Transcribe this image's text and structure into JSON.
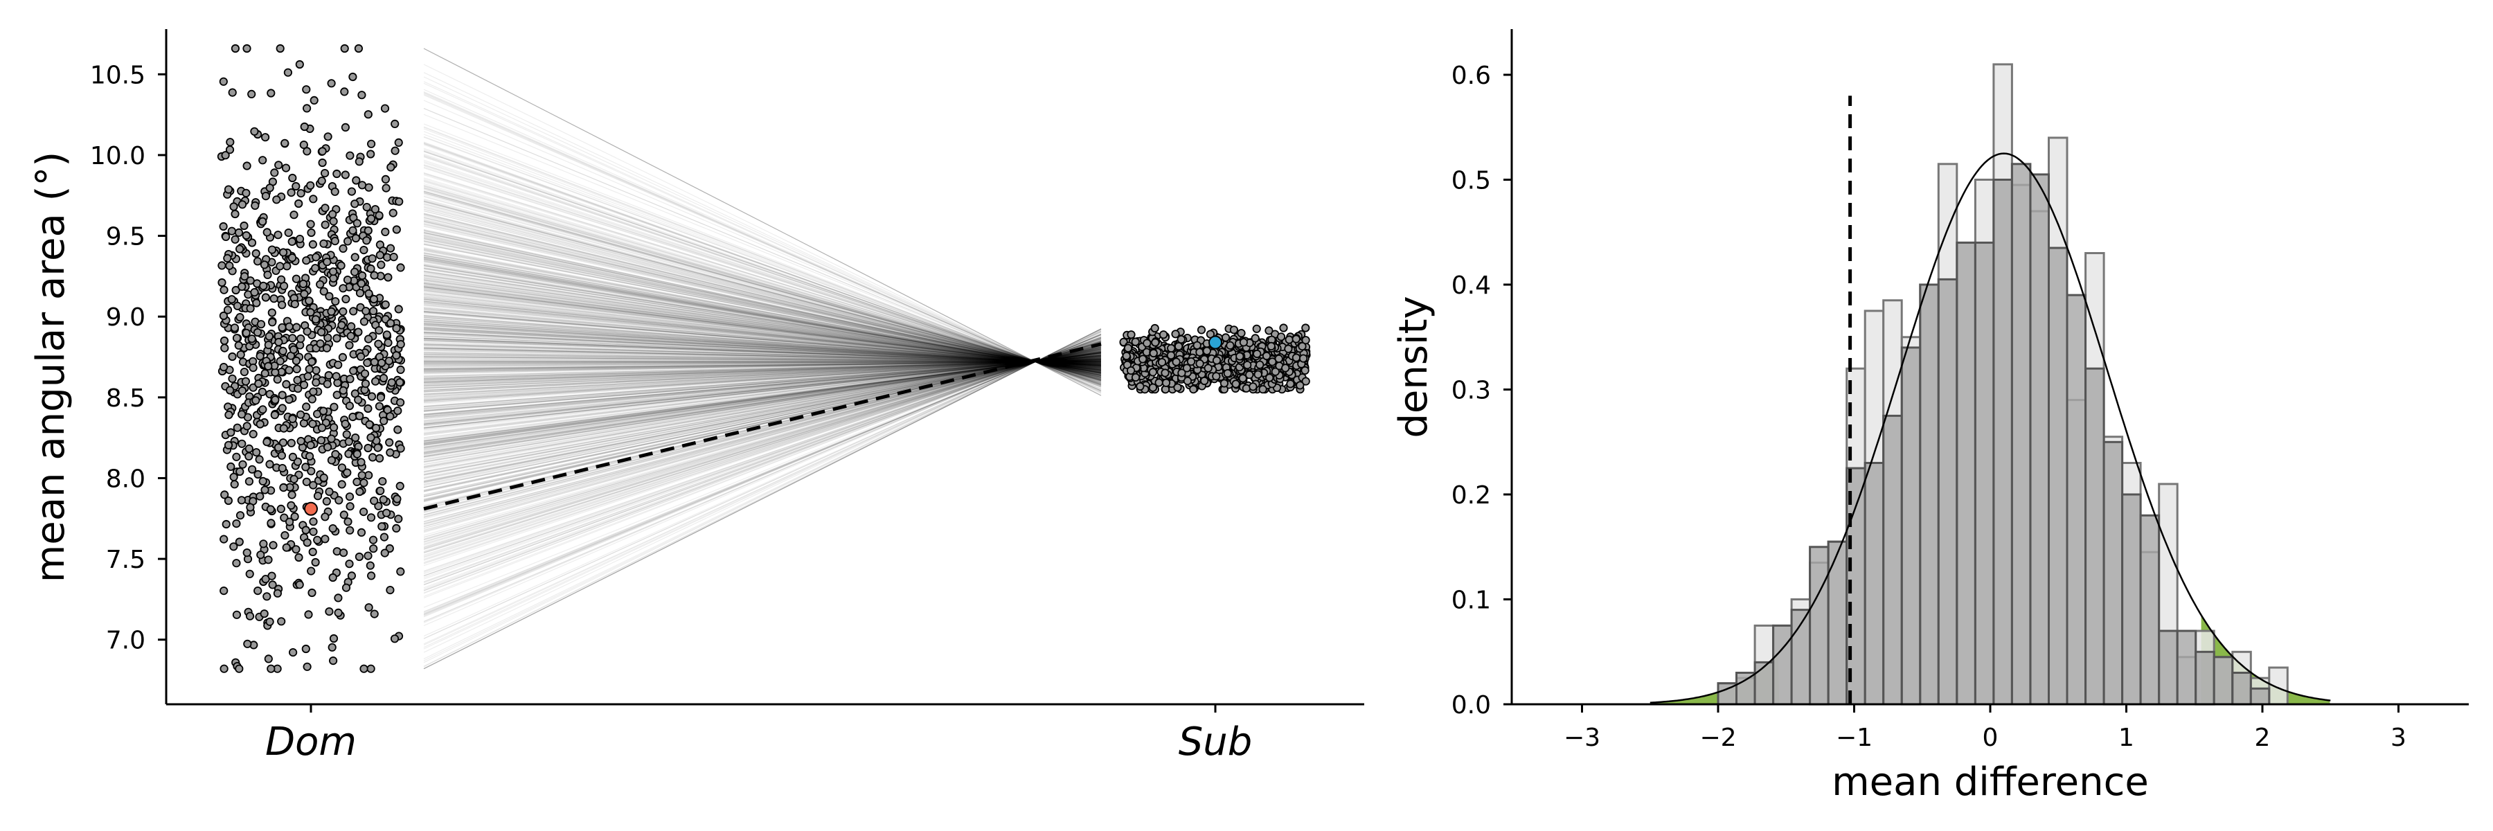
{
  "chart_data": [
    {
      "type": "scatter",
      "ylabel": "mean angular area (°)",
      "xlabel": "",
      "categories": [
        "Dom",
        "Sub"
      ],
      "ylim": [
        6.6,
        10.78
      ],
      "yticks": [
        7.0,
        7.5,
        8.0,
        8.5,
        9.0,
        9.5,
        10.0,
        10.5
      ],
      "ytick_labels": [
        "7.0",
        "7.5",
        "8.0",
        "8.5",
        "9.0",
        "9.5",
        "10.0",
        "10.5"
      ],
      "grid": false,
      "dom_points": {
        "count": 1000,
        "mean": 8.72,
        "sd": 0.75,
        "min": 6.82,
        "max": 10.66,
        "marker_color": "#999999",
        "edge_color": "#000000"
      },
      "sub_points": {
        "count": 1000,
        "mean": 8.72,
        "sd": 0.085,
        "min": 8.55,
        "max": 8.93,
        "marker_color": "#999999",
        "edge_color": "#000000"
      },
      "highlight": {
        "dom_value": 7.81,
        "sub_value": 8.84,
        "dom_color": "#f26c4f",
        "sub_color": "#2aa3d4"
      },
      "pair_lines": {
        "count": 1000,
        "crossing_value": 8.72,
        "line_color": "#000000",
        "observed_style": "dashed"
      }
    },
    {
      "type": "histogram",
      "xlabel": "mean difference",
      "ylabel": "density",
      "xlim": [
        -3.5,
        3.5
      ],
      "ylim": [
        0,
        0.64
      ],
      "xticks": [
        -3,
        -2,
        -1,
        0,
        1,
        2,
        3
      ],
      "xtick_labels": [
        "−3",
        "−2",
        "−1",
        "0",
        "1",
        "2",
        "3"
      ],
      "yticks": [
        0.0,
        0.1,
        0.2,
        0.3,
        0.4,
        0.5,
        0.6
      ],
      "ytick_labels": [
        "0.0",
        "0.1",
        "0.2",
        "0.3",
        "0.4",
        "0.5",
        "0.6"
      ],
      "bin_width": 0.135,
      "light_bins": [
        {
          "x": -2.0,
          "density": 0.02
        },
        {
          "x": -1.865,
          "density": 0.025
        },
        {
          "x": -1.73,
          "density": 0.075
        },
        {
          "x": -1.595,
          "density": 0.075
        },
        {
          "x": -1.46,
          "density": 0.1
        },
        {
          "x": -1.325,
          "density": 0.135
        },
        {
          "x": -1.19,
          "density": 0.155
        },
        {
          "x": -1.055,
          "density": 0.32
        },
        {
          "x": -0.92,
          "density": 0.375
        },
        {
          "x": -0.785,
          "density": 0.385
        },
        {
          "x": -0.65,
          "density": 0.35
        },
        {
          "x": -0.515,
          "density": 0.4
        },
        {
          "x": -0.38,
          "density": 0.515
        },
        {
          "x": -0.245,
          "density": 0.44
        },
        {
          "x": -0.11,
          "density": 0.5
        },
        {
          "x": 0.025,
          "density": 0.61
        },
        {
          "x": 0.16,
          "density": 0.495
        },
        {
          "x": 0.295,
          "density": 0.47
        },
        {
          "x": 0.43,
          "density": 0.54
        },
        {
          "x": 0.565,
          "density": 0.29
        },
        {
          "x": 0.7,
          "density": 0.43
        },
        {
          "x": 0.835,
          "density": 0.255
        },
        {
          "x": 0.97,
          "density": 0.23
        },
        {
          "x": 1.105,
          "density": 0.145
        },
        {
          "x": 1.24,
          "density": 0.21
        },
        {
          "x": 1.375,
          "density": 0.045
        },
        {
          "x": 1.51,
          "density": 0.07
        },
        {
          "x": 1.645,
          "density": 0.045
        },
        {
          "x": 1.78,
          "density": 0.05
        },
        {
          "x": 1.915,
          "density": 0.025
        },
        {
          "x": 2.05,
          "density": 0.035
        }
      ],
      "dark_bins": [
        {
          "x": -2.0,
          "density": 0.02
        },
        {
          "x": -1.865,
          "density": 0.03
        },
        {
          "x": -1.73,
          "density": 0.04
        },
        {
          "x": -1.595,
          "density": 0.075
        },
        {
          "x": -1.46,
          "density": 0.09
        },
        {
          "x": -1.325,
          "density": 0.15
        },
        {
          "x": -1.19,
          "density": 0.155
        },
        {
          "x": -1.055,
          "density": 0.225
        },
        {
          "x": -0.92,
          "density": 0.23
        },
        {
          "x": -0.785,
          "density": 0.275
        },
        {
          "x": -0.65,
          "density": 0.34
        },
        {
          "x": -0.515,
          "density": 0.4
        },
        {
          "x": -0.38,
          "density": 0.405
        },
        {
          "x": -0.245,
          "density": 0.44
        },
        {
          "x": -0.11,
          "density": 0.44
        },
        {
          "x": 0.025,
          "density": 0.5
        },
        {
          "x": 0.16,
          "density": 0.515
        },
        {
          "x": 0.295,
          "density": 0.505
        },
        {
          "x": 0.43,
          "density": 0.435
        },
        {
          "x": 0.565,
          "density": 0.39
        },
        {
          "x": 0.7,
          "density": 0.32
        },
        {
          "x": 0.835,
          "density": 0.25
        },
        {
          "x": 0.97,
          "density": 0.2
        },
        {
          "x": 1.105,
          "density": 0.18
        },
        {
          "x": 1.24,
          "density": 0.07
        },
        {
          "x": 1.375,
          "density": 0.07
        },
        {
          "x": 1.51,
          "density": 0.05
        },
        {
          "x": 1.645,
          "density": 0.045
        },
        {
          "x": 1.78,
          "density": 0.03
        },
        {
          "x": 1.915,
          "density": 0.015
        }
      ],
      "kde": {
        "mean": 0.1,
        "sd": 0.76,
        "peak_density": 0.525,
        "range": [
          -2.5,
          2.5
        ]
      },
      "observed_difference": -1.03,
      "tail_threshold": 1.55,
      "tail_color": "#8ab84a",
      "light_bar_color": "#e6e6e6",
      "dark_bar_color": "#a6a6a6",
      "dashed_line_top": 0.58
    }
  ]
}
